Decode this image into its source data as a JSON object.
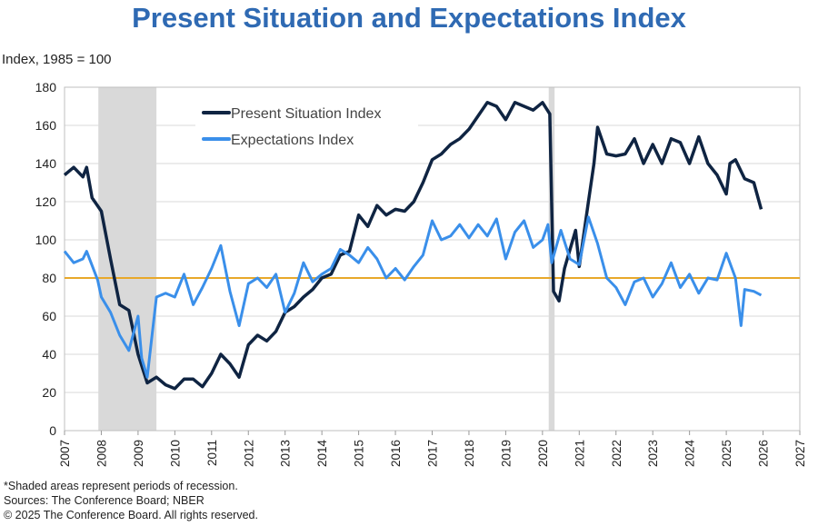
{
  "chart_data": {
    "type": "line",
    "title": "Present Situation and Expectations Index",
    "ylabel": "Index, 1985 = 100",
    "xlabel": "",
    "ylim": [
      0,
      180
    ],
    "yticks": [
      0,
      20,
      40,
      60,
      80,
      100,
      120,
      140,
      160,
      180
    ],
    "xlim": [
      2007,
      2027
    ],
    "xticks": [
      "2007",
      "2008",
      "2009",
      "2010",
      "2011",
      "2012",
      "2013",
      "2014",
      "2015",
      "2016",
      "2017",
      "2018",
      "2019",
      "2020",
      "2021",
      "2022",
      "2023",
      "2024",
      "2025",
      "2026",
      "2027"
    ],
    "grid": true,
    "legend": "top-left",
    "reference_line": {
      "y": 80,
      "color": "#e8a82a"
    },
    "recessions": [
      [
        2007.92,
        2009.5
      ],
      [
        2020.17,
        2020.33
      ]
    ],
    "series": [
      {
        "name": "Present Situation Index",
        "color": "#0f2442",
        "x": [
          2007.0,
          2007.25,
          2007.5,
          2007.6,
          2007.75,
          2008.0,
          2008.25,
          2008.5,
          2008.75,
          2009.0,
          2009.25,
          2009.5,
          2009.75,
          2010.0,
          2010.25,
          2010.5,
          2010.75,
          2011.0,
          2011.25,
          2011.5,
          2011.75,
          2012.0,
          2012.25,
          2012.5,
          2012.75,
          2013.0,
          2013.25,
          2013.5,
          2013.75,
          2014.0,
          2014.25,
          2014.5,
          2014.75,
          2015.0,
          2015.25,
          2015.5,
          2015.75,
          2016.0,
          2016.25,
          2016.5,
          2016.75,
          2017.0,
          2017.25,
          2017.5,
          2017.75,
          2018.0,
          2018.25,
          2018.5,
          2018.75,
          2019.0,
          2019.25,
          2019.5,
          2019.75,
          2020.0,
          2020.2,
          2020.3,
          2020.45,
          2020.6,
          2020.75,
          2020.9,
          2021.0,
          2021.25,
          2021.4,
          2021.5,
          2021.75,
          2022.0,
          2022.25,
          2022.5,
          2022.75,
          2023.0,
          2023.25,
          2023.5,
          2023.75,
          2024.0,
          2024.25,
          2024.5,
          2024.75,
          2025.0,
          2025.1,
          2025.25,
          2025.5,
          2025.75,
          2025.95
        ],
        "y": [
          134,
          138,
          133,
          138,
          122,
          115,
          90,
          66,
          63,
          40,
          25,
          28,
          24,
          22,
          27,
          27,
          23,
          30,
          40,
          35,
          28,
          45,
          50,
          47,
          52,
          62,
          65,
          70,
          74,
          80,
          82,
          92,
          94,
          113,
          107,
          118,
          113,
          116,
          115,
          120,
          130,
          142,
          145,
          150,
          153,
          158,
          165,
          172,
          170,
          163,
          172,
          170,
          168,
          172,
          166,
          73,
          68,
          85,
          95,
          105,
          86,
          120,
          140,
          159,
          145,
          144,
          145,
          153,
          140,
          150,
          140,
          153,
          151,
          140,
          154,
          140,
          134,
          124,
          140,
          142,
          132,
          130,
          116
        ]
      },
      {
        "name": "Expectations Index",
        "color": "#3a8fea",
        "x": [
          2007.0,
          2007.25,
          2007.5,
          2007.6,
          2007.9,
          2008.0,
          2008.25,
          2008.5,
          2008.75,
          2009.0,
          2009.1,
          2009.25,
          2009.5,
          2009.75,
          2010.0,
          2010.25,
          2010.5,
          2010.75,
          2011.0,
          2011.25,
          2011.5,
          2011.75,
          2012.0,
          2012.25,
          2012.5,
          2012.75,
          2013.0,
          2013.25,
          2013.5,
          2013.75,
          2014.0,
          2014.25,
          2014.5,
          2014.75,
          2015.0,
          2015.25,
          2015.5,
          2015.75,
          2016.0,
          2016.25,
          2016.5,
          2016.75,
          2017.0,
          2017.25,
          2017.5,
          2017.75,
          2018.0,
          2018.25,
          2018.5,
          2018.75,
          2019.0,
          2019.25,
          2019.5,
          2019.75,
          2020.0,
          2020.15,
          2020.25,
          2020.5,
          2020.75,
          2021.0,
          2021.25,
          2021.5,
          2021.75,
          2022.0,
          2022.25,
          2022.5,
          2022.75,
          2023.0,
          2023.25,
          2023.5,
          2023.75,
          2024.0,
          2024.25,
          2024.5,
          2024.75,
          2025.0,
          2025.25,
          2025.4,
          2025.5,
          2025.75,
          2025.95
        ],
        "y": [
          94,
          88,
          90,
          94,
          79,
          70,
          62,
          50,
          42,
          60,
          38,
          28,
          70,
          72,
          70,
          82,
          66,
          75,
          85,
          97,
          73,
          55,
          77,
          80,
          75,
          82,
          62,
          72,
          88,
          78,
          82,
          85,
          95,
          92,
          88,
          96,
          90,
          80,
          85,
          79,
          86,
          92,
          110,
          100,
          102,
          108,
          101,
          108,
          102,
          111,
          90,
          104,
          110,
          96,
          100,
          108,
          88,
          105,
          90,
          87,
          112,
          98,
          80,
          75,
          66,
          78,
          80,
          70,
          77,
          88,
          75,
          82,
          72,
          80,
          79,
          93,
          80,
          55,
          74,
          73,
          71
        ]
      }
    ]
  },
  "footnotes": [
    "*Shaded areas represent periods of recession.",
    "Sources:  The Conference Board;  NBER",
    "© 2025 The Conference Board. All rights reserved."
  ]
}
